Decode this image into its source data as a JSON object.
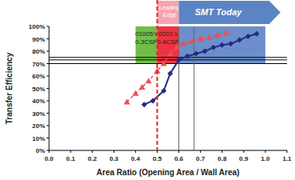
{
  "chart_data": {
    "type": "line",
    "x_label": "Area Ratio (Opening Area / Wall Area)",
    "y_label": "Transfer Efficiency",
    "xlim": [
      0,
      1.1
    ],
    "ylim": [
      0,
      100
    ],
    "xticks": [
      {
        "value": 0,
        "label": "0.0"
      },
      0.1,
      0.2,
      0.3,
      0.4,
      0.5,
      0.6,
      0.7,
      0.8,
      0.9,
      {
        "value": 1,
        "label": "1.0"
      },
      1.1
    ],
    "yticks": [
      {
        "value": 0,
        "label": "0%"
      },
      {
        "value": 10,
        "label": "10%"
      },
      {
        "value": 20,
        "label": "20%"
      },
      {
        "value": 30,
        "label": "30%"
      },
      {
        "value": 40,
        "label": "40%"
      },
      {
        "value": 50,
        "label": "50%"
      },
      {
        "value": 60,
        "label": "60%"
      },
      {
        "value": 70,
        "label": "70%"
      },
      {
        "value": 80,
        "label": "80%"
      },
      {
        "value": 90,
        "label": "90%"
      },
      {
        "value": 100,
        "label": "100%"
      }
    ],
    "grid": false,
    "series": [
      {
        "color": "#232b86",
        "marker": "diamond",
        "line_style": "solid",
        "x": [
          0.44,
          0.48,
          0.53,
          0.56,
          0.6,
          0.64,
          0.68,
          0.72,
          0.76,
          0.8,
          0.84,
          0.88,
          0.92,
          0.96
        ],
        "values": [
          37,
          40,
          48,
          62,
          73,
          76,
          78,
          80,
          83,
          85,
          86,
          89,
          92,
          94
        ]
      },
      {
        "color": "#ee4d55",
        "marker": "triangle",
        "line_style": "dashed",
        "x": [
          0.36,
          0.4,
          0.43,
          0.46,
          0.5,
          0.53,
          0.56,
          0.59,
          0.62,
          0.66,
          0.7,
          0.74,
          0.78,
          0.82
        ],
        "values": [
          39,
          46,
          51,
          56,
          64,
          70,
          78,
          83,
          86,
          88,
          90,
          91,
          93,
          95
        ]
      }
    ],
    "regions": [
      {
        "label": [
          "01005's",
          "0.3CSP"
        ],
        "x": [
          0.4,
          0.5
        ],
        "y": [
          70,
          100
        ],
        "color": "#6fbf47"
      },
      {
        "label": [
          "0201's",
          "0.4CSP"
        ],
        "x": [
          0.5,
          0.6
        ],
        "y": [
          70,
          100
        ],
        "color": "#ee3340"
      },
      {
        "label": [],
        "x": [
          0.6,
          1
        ],
        "y": [
          70,
          100
        ],
        "color": "#6b8fcb"
      }
    ],
    "header": [
      {
        "label": [
          "Leading",
          "Edge"
        ],
        "x": [
          0.5,
          0.6
        ],
        "color": "#f6a4ad"
      },
      {
        "label": [
          "SMT Today"
        ],
        "x": [
          0.6,
          1.07
        ],
        "color": "#5b84c4"
      }
    ],
    "reference_lines": {
      "x": [
        0.6,
        0.67
      ],
      "y": [
        70,
        73,
        75
      ],
      "color": "#666666"
    },
    "marker_line": {
      "x": 0.5,
      "color": "#ee2222",
      "line_style": "dashed"
    }
  }
}
